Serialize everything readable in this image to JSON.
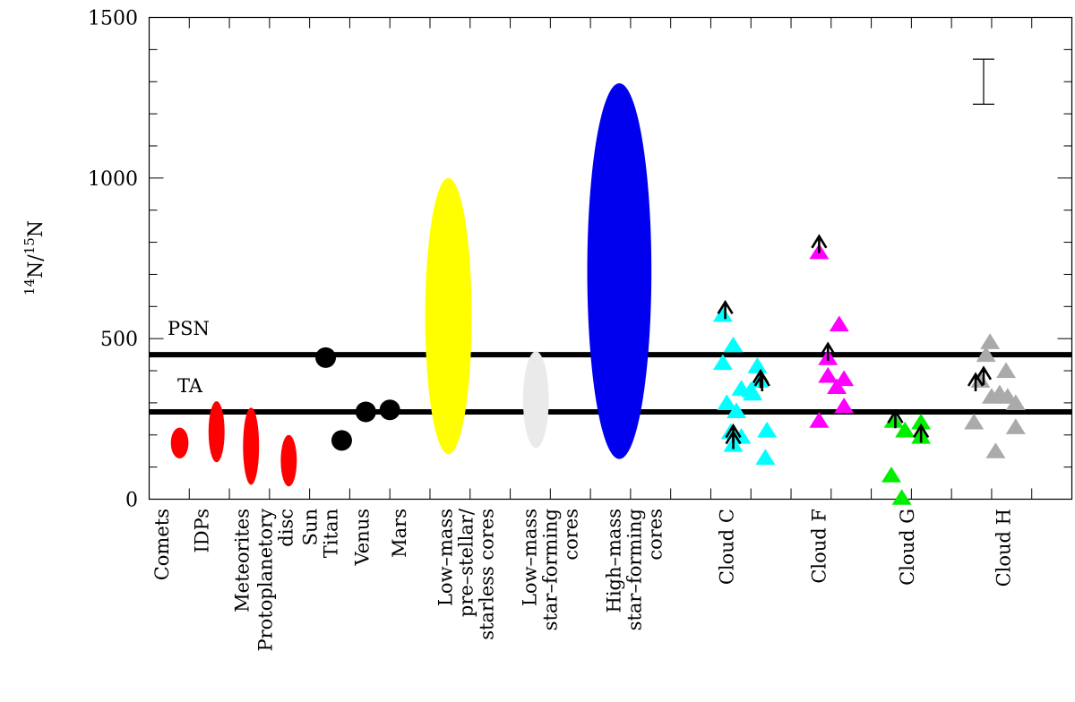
{
  "chart_data": {
    "type": "scatter",
    "ylabel": {
      "sup1": "14",
      "base1": "N/",
      "sup2": "15",
      "base2": "N"
    },
    "ylim": [
      0,
      1500
    ],
    "xlim": [
      0,
      11.5
    ],
    "yticks": [
      0,
      500,
      1000,
      1500
    ],
    "yminor_step": 100,
    "xminor": [
      0.5,
      1,
      1.5,
      2,
      2.5,
      3,
      3.5,
      4,
      4.5,
      5,
      5.5,
      6,
      6.5,
      7,
      7.5,
      8,
      8.5,
      9,
      9.5,
      10,
      10.5,
      11
    ],
    "reference_lines": [
      {
        "label": "PSN",
        "y": 450
      },
      {
        "label": "TA",
        "y": 272
      }
    ],
    "error_bar": {
      "x": 10.4,
      "low": 1230,
      "high": 1370
    },
    "category_labels": [
      {
        "x": 0.16,
        "lines": [
          "Comets"
        ]
      },
      {
        "x": 0.66,
        "lines": [
          "IDPs"
        ]
      },
      {
        "x": 1.16,
        "lines": [
          "Meteorites"
        ]
      },
      {
        "x": 1.58,
        "lines": [
          "Protoplanetory",
          "disc"
        ]
      },
      {
        "x": 2.14,
        "lines": [
          "Sun",
          "Titan"
        ]
      },
      {
        "x": 2.66,
        "lines": [
          "Venus"
        ]
      },
      {
        "x": 3.12,
        "lines": [
          "Mars"
        ]
      },
      {
        "x": 3.95,
        "lines": [
          "Low–mass",
          "pre–stellar/",
          "starless cores"
        ]
      },
      {
        "x": 5.0,
        "lines": [
          "Low–mass",
          "star–forming",
          "cores"
        ]
      },
      {
        "x": 6.05,
        "lines": [
          "High–mass",
          "star–forming",
          "cores"
        ]
      },
      {
        "x": 7.2,
        "lines": [
          "Cloud C"
        ]
      },
      {
        "x": 8.35,
        "lines": [
          "Cloud F"
        ]
      },
      {
        "x": 9.45,
        "lines": [
          "Cloud G"
        ]
      },
      {
        "x": 10.65,
        "lines": [
          "Cloud H"
        ]
      }
    ],
    "ellipses": [
      {
        "name": "Comets",
        "x": 0.38,
        "y": 175,
        "rx": 0.11,
        "ry": 48,
        "color": "#ff0000"
      },
      {
        "name": "IDPs",
        "x": 0.84,
        "y": 210,
        "rx": 0.1,
        "ry": 95,
        "color": "#ff0000"
      },
      {
        "name": "Meteorites",
        "x": 1.27,
        "y": 165,
        "rx": 0.1,
        "ry": 120,
        "color": "#ff0000"
      },
      {
        "name": "Protoplanetory disc",
        "x": 1.74,
        "y": 120,
        "rx": 0.1,
        "ry": 80,
        "color": "#ff0000"
      },
      {
        "name": "Low-mass pre-stellar/starless cores",
        "x": 3.73,
        "y": 570,
        "rx": 0.29,
        "ry": 430,
        "color": "#ffff00"
      },
      {
        "name": "Low-mass star-forming cores",
        "x": 4.82,
        "y": 310,
        "rx": 0.16,
        "ry": 150,
        "color": "#eaeaea"
      },
      {
        "name": "High-mass star-forming cores",
        "x": 5.86,
        "y": 710,
        "rx": 0.4,
        "ry": 585,
        "color": "#0000ee"
      }
    ],
    "circles": [
      {
        "name": "Sun",
        "x": 2.2,
        "y": 441
      },
      {
        "name": "Titan",
        "x": 2.4,
        "y": 183
      },
      {
        "name": "Venus",
        "x": 2.7,
        "y": 272
      },
      {
        "name": "Mars",
        "x": 3.0,
        "y": 278
      }
    ],
    "series": [
      {
        "name": "Cloud C",
        "color": "#00ffff",
        "points": [
          [
            7.15,
            575
          ],
          [
            7.28,
            480
          ],
          [
            7.15,
            425
          ],
          [
            7.2,
            300
          ],
          [
            7.32,
            275
          ],
          [
            7.25,
            210
          ],
          [
            7.38,
            195
          ],
          [
            7.38,
            345
          ],
          [
            7.52,
            330
          ],
          [
            7.5,
            340
          ],
          [
            7.58,
            415
          ],
          [
            7.6,
            370
          ],
          [
            7.7,
            215
          ],
          [
            7.68,
            130
          ],
          [
            7.28,
            170
          ]
        ],
        "lower_limits": [
          [
            7.18,
            600
          ],
          [
            7.28,
            215
          ],
          [
            7.28,
            195
          ],
          [
            7.62,
            385
          ],
          [
            7.64,
            375
          ]
        ]
      },
      {
        "name": "Cloud F",
        "color": "#ff00ff",
        "points": [
          [
            8.35,
            770
          ],
          [
            8.46,
            440
          ],
          [
            8.46,
            385
          ],
          [
            8.57,
            350
          ],
          [
            8.66,
            375
          ],
          [
            8.6,
            545
          ],
          [
            8.35,
            245
          ],
          [
            8.66,
            290
          ]
        ],
        "lower_limits": [
          [
            8.35,
            805
          ],
          [
            8.46,
            470
          ]
        ]
      },
      {
        "name": "Cloud G",
        "color": "#00ee00",
        "points": [
          [
            9.28,
            245
          ],
          [
            9.42,
            215
          ],
          [
            9.62,
            240
          ],
          [
            9.62,
            195
          ],
          [
            9.25,
            75
          ],
          [
            9.38,
            5
          ]
        ],
        "lower_limits": [
          [
            9.3,
            260
          ],
          [
            9.62,
            215
          ]
        ]
      },
      {
        "name": "Cloud H",
        "color": "#aaaaaa",
        "points": [
          [
            10.48,
            490
          ],
          [
            10.43,
            450
          ],
          [
            10.36,
            370
          ],
          [
            10.5,
            320
          ],
          [
            10.6,
            330
          ],
          [
            10.7,
            320
          ],
          [
            10.68,
            400
          ],
          [
            10.8,
            300
          ],
          [
            10.8,
            225
          ],
          [
            10.55,
            150
          ],
          [
            10.28,
            240
          ]
        ],
        "lower_limits": [
          [
            10.3,
            375
          ],
          [
            10.4,
            395
          ]
        ]
      }
    ]
  }
}
